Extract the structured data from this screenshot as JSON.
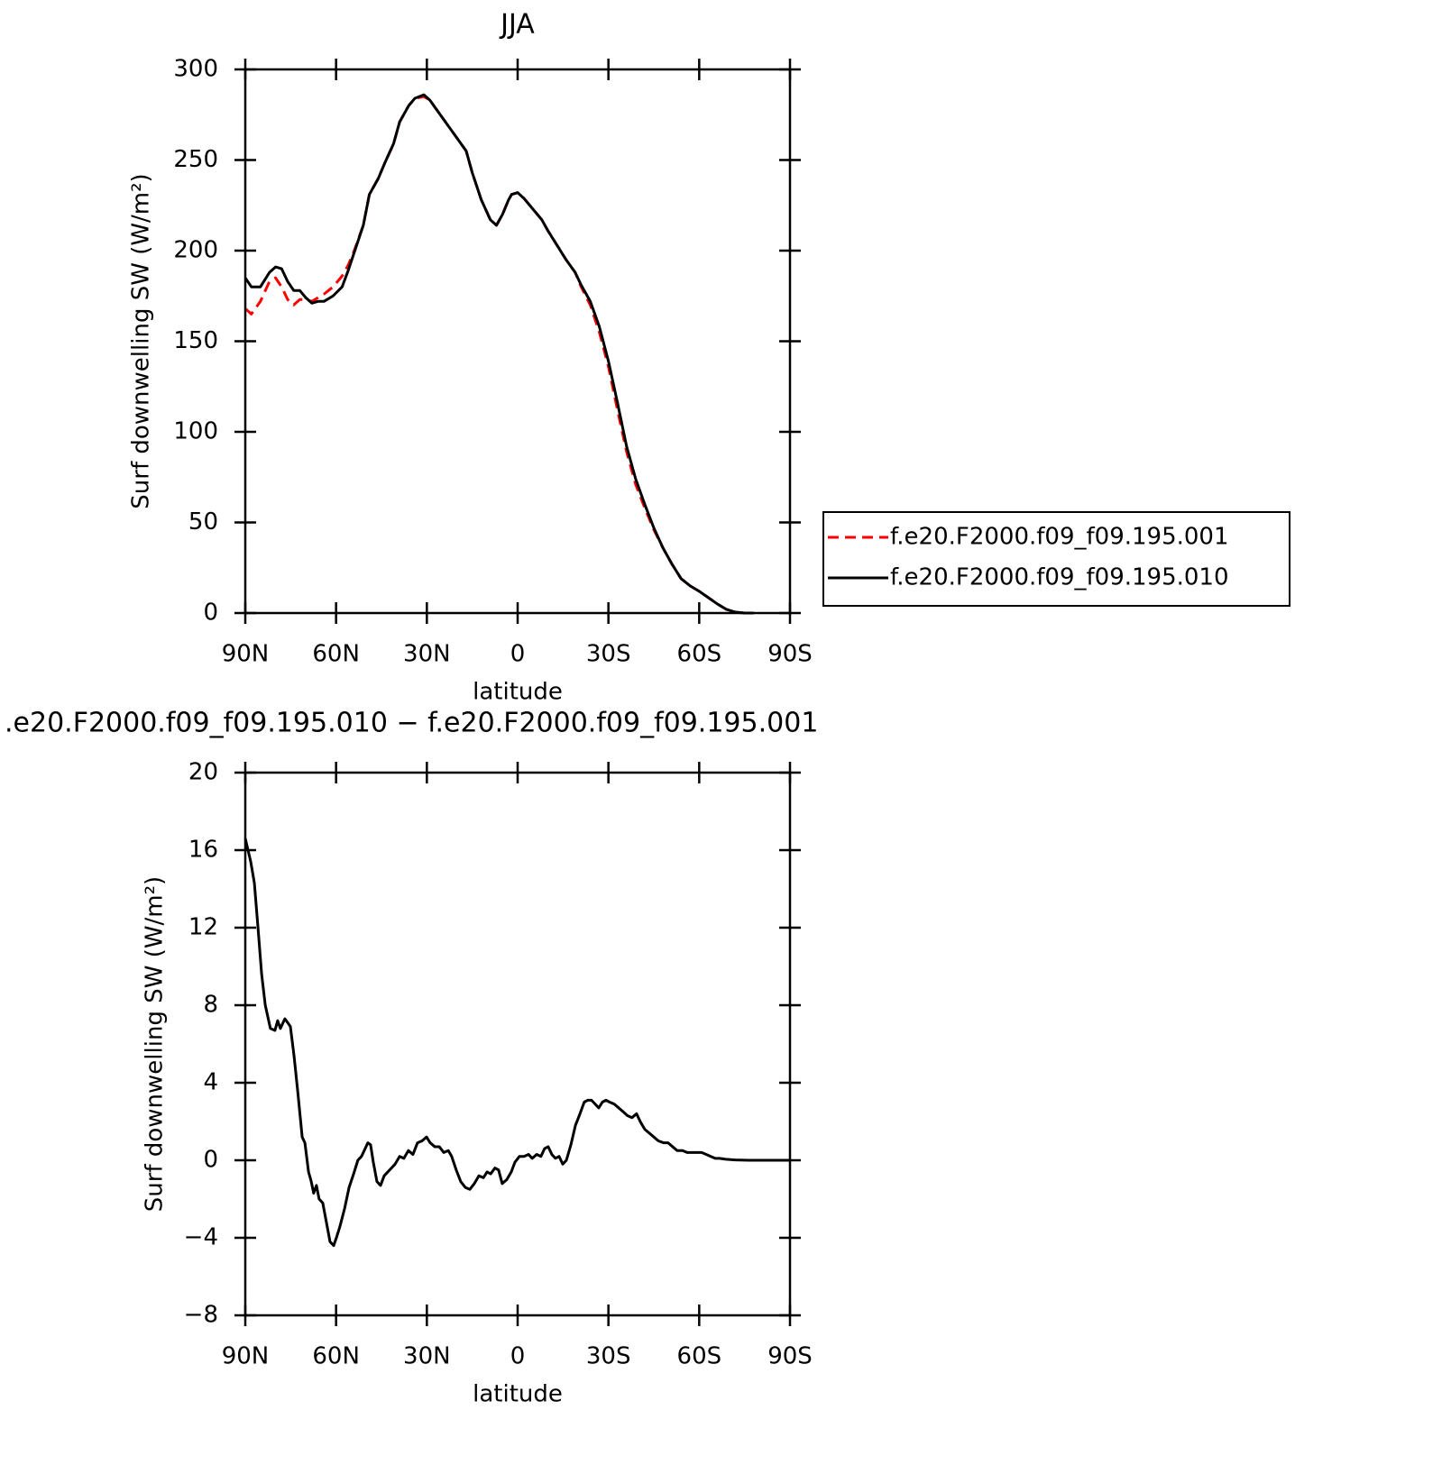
{
  "chart_data": [
    {
      "type": "line",
      "title": "JJA",
      "xlabel": "latitude",
      "ylabel": "Surf downwelling SW (W/m²)",
      "xlim": [
        90,
        -90
      ],
      "xticks": [
        {
          "value": 90,
          "label": "90N"
        },
        {
          "value": 60,
          "label": "60N"
        },
        {
          "value": 30,
          "label": "30N"
        },
        0,
        {
          "value": -30,
          "label": "30S"
        },
        {
          "value": -60,
          "label": "60S"
        },
        {
          "value": -90,
          "label": "90S"
        }
      ],
      "ylim": [
        0,
        300
      ],
      "yticks": [
        0,
        50,
        100,
        150,
        200,
        250,
        300
      ],
      "legend": "right",
      "x": [
        90,
        88,
        85,
        82,
        80,
        78,
        76,
        74,
        72,
        70,
        68,
        66,
        64,
        61,
        58,
        56,
        54,
        51,
        49,
        46,
        44,
        41,
        39,
        36,
        34,
        31,
        29,
        26,
        23,
        20,
        17,
        15,
        12,
        9,
        7,
        5,
        3,
        2,
        0,
        -2,
        -5,
        -8,
        -10,
        -13,
        -16,
        -19,
        -21,
        -24,
        -27,
        -30,
        -33,
        -36,
        -39,
        -42,
        -45,
        -48,
        -51,
        -54,
        -57,
        -60,
        -63,
        -66,
        -69,
        -72,
        -75,
        -78
      ],
      "series": [
        {
          "name": "f.e20.F2000.f09_f09.195.001",
          "color": "#ff0000",
          "dash": "dashed",
          "values": [
            168,
            165,
            172,
            183,
            185,
            180,
            173,
            170,
            173,
            173,
            172,
            174,
            176,
            180,
            186,
            192,
            200,
            214,
            231,
            240,
            248,
            259,
            271,
            280,
            284,
            285,
            283,
            276,
            269,
            262,
            255,
            243,
            228,
            217,
            214,
            220,
            228,
            231,
            232,
            229,
            223,
            217,
            211,
            203,
            195,
            188,
            180,
            170,
            155,
            136,
            112,
            89,
            71,
            58,
            46,
            36,
            27,
            19,
            15,
            12,
            8.5,
            5,
            2,
            0.5,
            0,
            0
          ]
        },
        {
          "name": "f.e20.F2000.f09_f09.195.010",
          "color": "#000000",
          "dash": "solid",
          "values": [
            185,
            180,
            180,
            188,
            191,
            190,
            183,
            178,
            178,
            174,
            171,
            172,
            172,
            175,
            180,
            189,
            199,
            214,
            231,
            240,
            248,
            259,
            271,
            280,
            284,
            286,
            283,
            276,
            269,
            262,
            255,
            243,
            228,
            217,
            214,
            220,
            228,
            231,
            232,
            229,
            223,
            217,
            211,
            203,
            195,
            188,
            181,
            172,
            158,
            139,
            116,
            92,
            74,
            60,
            47,
            36,
            27,
            19,
            15,
            12,
            8.5,
            5,
            2,
            0.5,
            0,
            0
          ]
        }
      ]
    },
    {
      "type": "line",
      "title": ".e20.F2000.f09_f09.195.010 − f.e20.F2000.f09_f09.195.001",
      "xlabel": "latitude",
      "ylabel": "Surf downwelling SW (W/m²)",
      "xlim": [
        90,
        -90
      ],
      "xticks": [
        {
          "value": 90,
          "label": "90N"
        },
        {
          "value": 60,
          "label": "60N"
        },
        {
          "value": 30,
          "label": "30N"
        },
        0,
        {
          "value": -30,
          "label": "30S"
        },
        {
          "value": -60,
          "label": "60S"
        },
        {
          "value": -90,
          "label": "90S"
        }
      ],
      "ylim": [
        -8,
        20
      ],
      "yticks": [
        {
          "value": -8,
          "label": "−8"
        },
        {
          "value": -4,
          "label": "−4"
        },
        0,
        4,
        8,
        12,
        16,
        20
      ],
      "color": "#000000",
      "x": [
        90,
        88.2,
        87,
        85.8,
        84.6,
        83.4,
        81.7,
        80.2,
        79.3,
        78.4,
        76.9,
        75.1,
        73.9,
        72.7,
        71.2,
        70.3,
        69.1,
        68.2,
        67.4,
        66.5,
        65.6,
        64.4,
        63.2,
        62,
        60.8,
        59.9,
        58.7,
        57.2,
        55.7,
        54.2,
        52.8,
        51.6,
        50.4,
        49.5,
        48.6,
        47.7,
        46.5,
        45.3,
        44.1,
        42.3,
        40.5,
        39,
        37.6,
        36.1,
        34.6,
        33.1,
        31.6,
        30.1,
        28.9,
        27.4,
        25.9,
        24.4,
        22.9,
        21.8,
        20.3,
        18.8,
        17.3,
        15.8,
        14.3,
        12.8,
        11.3,
        10.1,
        8.9,
        7.5,
        6.3,
        5.1,
        3.6,
        2.1,
        0.9,
        -0.6,
        -2.1,
        -3.6,
        -4.8,
        -6.3,
        -7.7,
        -8.9,
        -10.1,
        -11.3,
        -12.5,
        -13.7,
        -14.9,
        -16.1,
        -17.6,
        -19.1,
        -20.6,
        -22,
        -23.2,
        -24.4,
        -25.6,
        -26.8,
        -28,
        -29.2,
        -30.4,
        -31.9,
        -33.4,
        -34.9,
        -36.3,
        -37.8,
        -39.3,
        -40.5,
        -42,
        -43.5,
        -45,
        -46.5,
        -48.3,
        -49.7,
        -51.2,
        -52.7,
        -54.5,
        -56,
        -57.5,
        -59.3,
        -60.8,
        -62.3,
        -63.8,
        -65.3,
        -66.7,
        -68.8,
        -71.8,
        -76.3,
        -80.7,
        -90
      ],
      "values": [
        16.6,
        15.4,
        14.3,
        12,
        9.6,
        8,
        6.8,
        6.7,
        7.2,
        6.8,
        7.3,
        6.9,
        5.4,
        3.6,
        1.2,
        0.9,
        -0.6,
        -1.1,
        -1.7,
        -1.3,
        -2,
        -2.2,
        -3.2,
        -4.2,
        -4.4,
        -4,
        -3.4,
        -2.5,
        -1.4,
        -0.7,
        0,
        0.2,
        0.6,
        0.9,
        0.8,
        -0.1,
        -1.1,
        -1.3,
        -0.8,
        -0.5,
        -0.2,
        0.2,
        0.1,
        0.5,
        0.3,
        0.9,
        1,
        1.2,
        0.9,
        0.7,
        0.7,
        0.4,
        0.5,
        0.2,
        -0.5,
        -1.1,
        -1.4,
        -1.5,
        -1.2,
        -0.8,
        -0.9,
        -0.6,
        -0.7,
        -0.4,
        -0.5,
        -1.2,
        -1,
        -0.6,
        -0.1,
        0.2,
        0.2,
        0.3,
        0.1,
        0.3,
        0.2,
        0.6,
        0.7,
        0.3,
        0.1,
        0.2,
        -0.2,
        0,
        0.8,
        1.8,
        2.4,
        3,
        3.1,
        3.1,
        2.9,
        2.7,
        3,
        3.1,
        3,
        2.9,
        2.7,
        2.5,
        2.3,
        2.2,
        2.4,
        2,
        1.6,
        1.4,
        1.2,
        1,
        0.9,
        0.9,
        0.7,
        0.5,
        0.5,
        0.4,
        0.4,
        0.4,
        0.4,
        0.3,
        0.2,
        0.1,
        0.1,
        0.05,
        0.02,
        0,
        0,
        0
      ]
    }
  ]
}
